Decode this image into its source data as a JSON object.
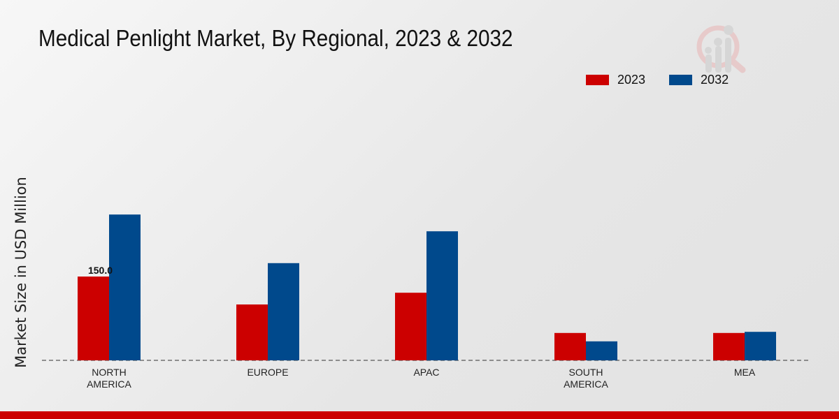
{
  "chart_data": {
    "type": "bar",
    "title": "Medical Penlight Market, By Regional, 2023 & 2032",
    "xlabel": "",
    "ylabel": "Market Size in USD Million",
    "categories": [
      [
        "NORTH",
        "AMERICA"
      ],
      [
        "EUROPE"
      ],
      [
        "APAC"
      ],
      [
        "SOUTH",
        "AMERICA"
      ],
      [
        "MEA"
      ]
    ],
    "series": [
      {
        "name": "2023",
        "color": "#cc0000",
        "values": [
          150.0,
          100,
          121,
          49,
          49
        ]
      },
      {
        "name": "2032",
        "color": "#00498c",
        "values": [
          261,
          174,
          231,
          34,
          51
        ]
      }
    ],
    "data_labels": [
      {
        "series": 0,
        "index": 0,
        "text": "150.0"
      }
    ],
    "ylim": [
      0,
      300
    ],
    "grid": false,
    "legend": "top-right"
  }
}
